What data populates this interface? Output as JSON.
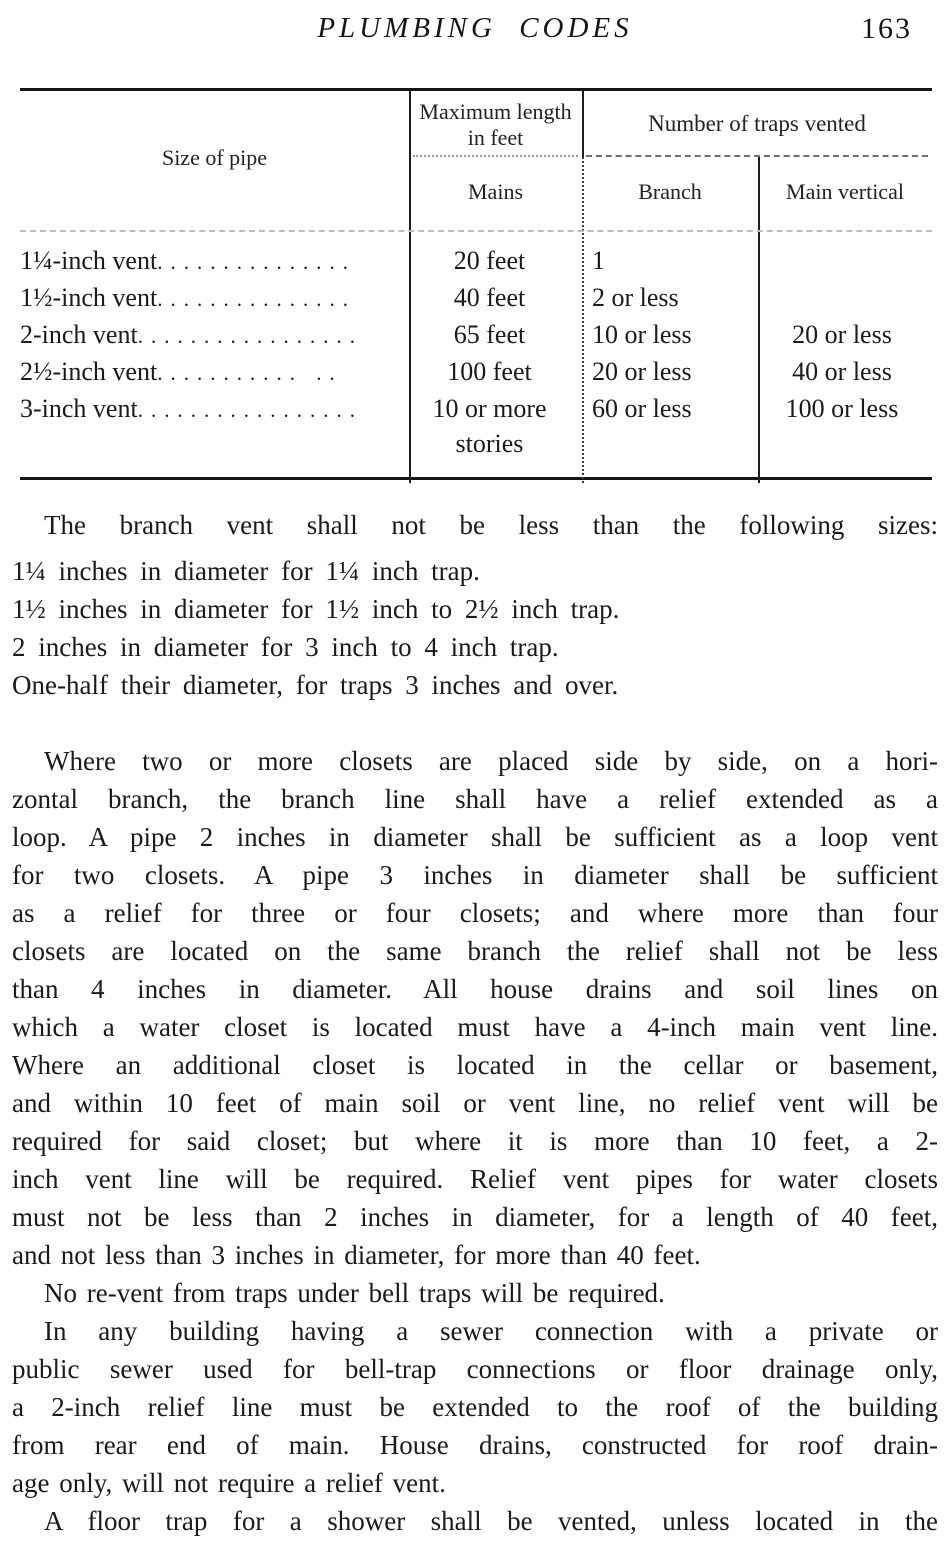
{
  "page": {
    "running_head": "PLUMBING CODES",
    "page_number": "163"
  },
  "table": {
    "headers": {
      "size_of_pipe": "Size of pipe",
      "max_length_group": "Maximum length in feet",
      "traps_vented_group": "Number of traps vented",
      "mains": "Mains",
      "branch": "Branch",
      "main_vertical": "Main vertical"
    },
    "rows": [
      {
        "label": "1¼-inch vent",
        "leader": "...............",
        "mains": "20 feet",
        "branch": "1",
        "main_vertical": ""
      },
      {
        "label": "1½-inch vent",
        "leader": "...............",
        "mains": "40 feet",
        "branch": "2 or less",
        "main_vertical": ""
      },
      {
        "label": "2-inch vent",
        "leader": ".................",
        "mains": "65 feet",
        "branch": "10 or less",
        "main_vertical": "20 or less"
      },
      {
        "label": "2½-inch vent",
        "leader": "...........  ..",
        "mains": "100 feet",
        "branch": "20 or less",
        "main_vertical": "40 or less"
      },
      {
        "label": "3-inch vent",
        "leader": ".................",
        "mains": "10 or more stories",
        "branch": "60 or less",
        "main_vertical": "100 or less"
      }
    ]
  },
  "content": {
    "intro": "The branch vent shall not be less than the following sizes:",
    "size_rules": [
      "1¼ inches in diameter for 1¼ inch trap.",
      "1½ inches in diameter for 1½ inch to 2½ inch trap.",
      "2 inches in diameter for 3 inch to 4 inch trap.",
      "One-half their diameter, for traps 3 inches and over."
    ],
    "para_closets": {
      "lines": [
        "Where two or more closets are placed side by side, on a hori-",
        "zontal branch, the branch line shall have a relief extended as a",
        "loop.  A pipe 2 inches in diameter shall be sufficient as a loop vent",
        "for two closets.  A pipe 3 inches in diameter shall be sufficient",
        "as a relief for three or four closets; and where more than four",
        "closets are located on the same branch the relief shall not be less",
        "than 4 inches in diameter.  All house drains and soil lines on",
        "which a water closet is located must have a 4-inch main vent line.",
        "Where an additional closet is located in the cellar or basement,",
        "and within 10 feet of main soil or vent line, no relief vent will be",
        "required for said closet; but where it is more than 10 feet, a 2-",
        "inch vent line will be required.  Relief vent pipes for water closets",
        "must not be less than 2 inches in diameter, for a length of 40 feet,",
        "and not less than 3 inches in diameter, for more than 40 feet."
      ]
    },
    "para_revent": "No re-vent from traps under bell traps will be required.",
    "para_sewer": {
      "lines": [
        "In any building having a sewer connection with a private or",
        "public sewer used for bell-trap connections or floor drainage only,",
        "a 2-inch relief line must be extended to the roof of the building",
        "from rear end of main.  House drains, constructed for roof drain-",
        "age only, will not require a relief vent."
      ]
    },
    "para_shower": "A floor trap for a shower shall be vented, unless located in the"
  }
}
